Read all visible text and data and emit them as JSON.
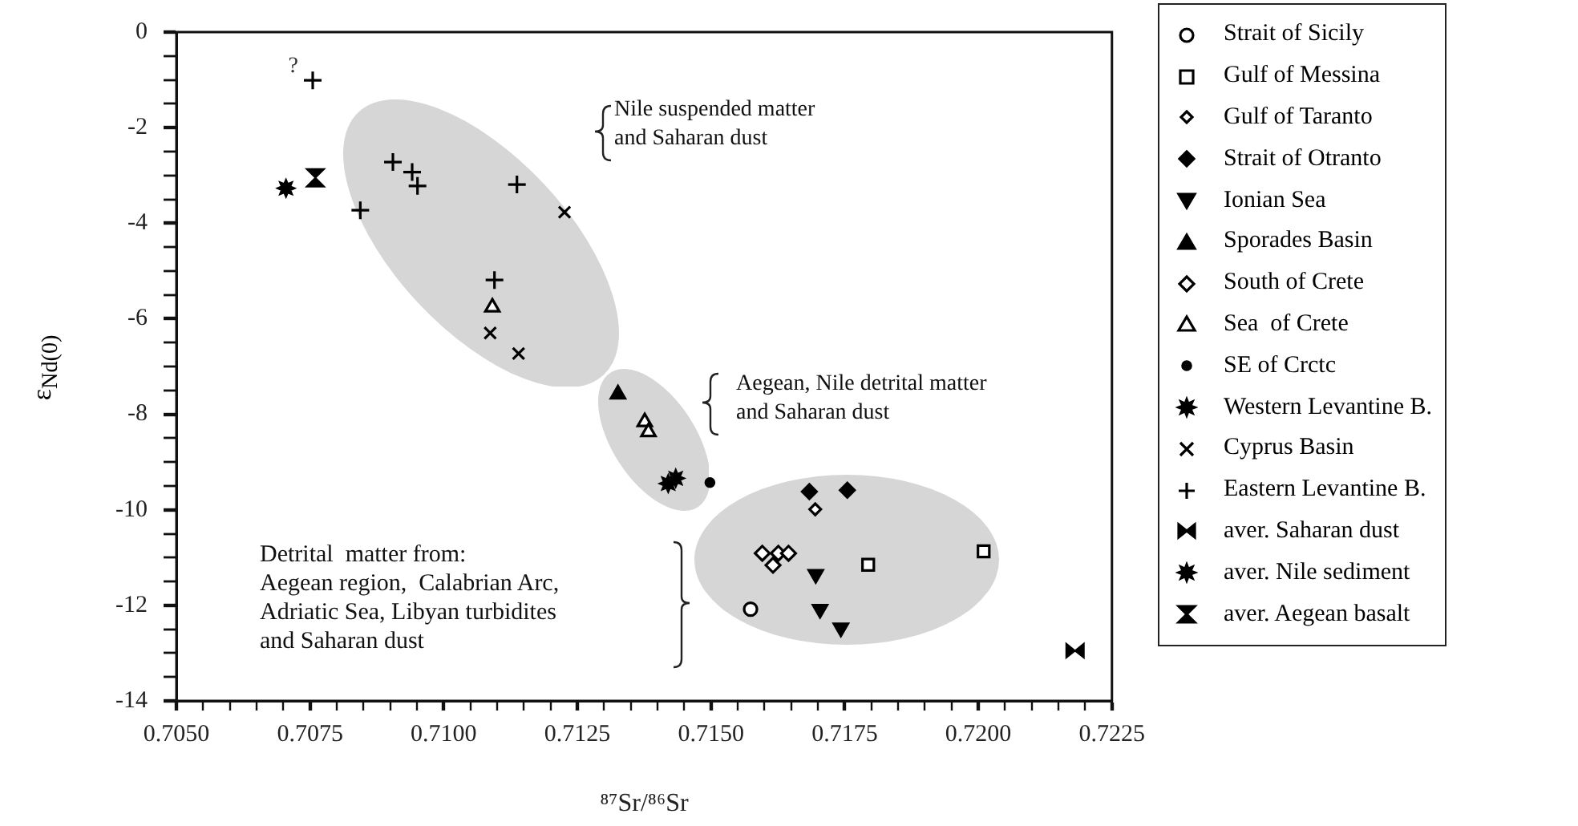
{
  "chart_data": {
    "type": "scatter",
    "xlabel": "⁸⁷Sr/⁸⁶Sr",
    "ylabel": "ε$_{Nd(0)}$",
    "xlim": [
      0.705,
      0.7225
    ],
    "ylim": [
      -14,
      0
    ],
    "xticks": [
      {
        "value": 0.705,
        "label": "0.7050"
      },
      {
        "value": 0.7055,
        "label": null
      },
      {
        "value": 0.706,
        "label": null
      },
      {
        "value": 0.7065,
        "label": null
      },
      {
        "value": 0.707,
        "label": null
      },
      {
        "value": 0.7075,
        "label": "0.7075"
      },
      {
        "value": 0.708,
        "label": null
      },
      {
        "value": 0.7085,
        "label": null
      },
      {
        "value": 0.709,
        "label": null
      },
      {
        "value": 0.7095,
        "label": null
      },
      {
        "value": 0.71,
        "label": "0.7100"
      },
      {
        "value": 0.7105,
        "label": null
      },
      {
        "value": 0.711,
        "label": null
      },
      {
        "value": 0.7115,
        "label": null
      },
      {
        "value": 0.712,
        "label": null
      },
      {
        "value": 0.7125,
        "label": "0.7125"
      },
      {
        "value": 0.713,
        "label": null
      },
      {
        "value": 0.7135,
        "label": null
      },
      {
        "value": 0.714,
        "label": null
      },
      {
        "value": 0.7145,
        "label": null
      },
      {
        "value": 0.715,
        "label": "0.7150"
      },
      {
        "value": 0.7155,
        "label": null
      },
      {
        "value": 0.716,
        "label": null
      },
      {
        "value": 0.7165,
        "label": null
      },
      {
        "value": 0.717,
        "label": null
      },
      {
        "value": 0.7175,
        "label": "0.7175"
      },
      {
        "value": 0.718,
        "label": null
      },
      {
        "value": 0.7185,
        "label": null
      },
      {
        "value": 0.719,
        "label": null
      },
      {
        "value": 0.7195,
        "label": null
      },
      {
        "value": 0.72,
        "label": "0.7200"
      },
      {
        "value": 0.7205,
        "label": null
      },
      {
        "value": 0.721,
        "label": null
      },
      {
        "value": 0.7215,
        "label": null
      },
      {
        "value": 0.722,
        "label": null
      },
      {
        "value": 0.7225,
        "label": "0.7225"
      }
    ],
    "yticks": [
      0,
      {
        "value": -0.5,
        "label": null
      },
      {
        "value": -1,
        "label": null
      },
      {
        "value": -1.5,
        "label": null
      },
      -2,
      {
        "value": -2.5,
        "label": null
      },
      {
        "value": -3,
        "label": null
      },
      {
        "value": -3.5,
        "label": null
      },
      -4,
      {
        "value": -4.5,
        "label": null
      },
      {
        "value": -5,
        "label": null
      },
      {
        "value": -5.5,
        "label": null
      },
      -6,
      {
        "value": -6.5,
        "label": null
      },
      {
        "value": -7,
        "label": null
      },
      {
        "value": -7.5,
        "label": null
      },
      -8,
      {
        "value": -8.5,
        "label": null
      },
      {
        "value": -9,
        "label": null
      },
      {
        "value": -9.5,
        "label": null
      },
      -10,
      {
        "value": -10.5,
        "label": null
      },
      {
        "value": -11,
        "label": null
      },
      {
        "value": -11.5,
        "label": null
      },
      -12,
      {
        "value": -12.5,
        "label": null
      },
      {
        "value": -13,
        "label": null
      },
      {
        "value": -13.5,
        "label": null
      },
      -14
    ],
    "grid": false,
    "legend": "right",
    "series": [
      {
        "name": "Strait of Sicily",
        "color": "#000000",
        "marker": "circle-open",
        "x": [
          0.71574
        ],
        "values": [
          -12.08
        ]
      },
      {
        "name": "Gulf of Messina",
        "color": "#000000",
        "marker": "square-open",
        "x": [
          0.71794,
          0.7201
        ],
        "values": [
          -11.15,
          -10.87
        ]
      },
      {
        "name": "Gulf of Taranto",
        "color": "#000000",
        "marker": "diamond-open-small",
        "x": [
          0.71695
        ],
        "values": [
          -9.99
        ]
      },
      {
        "name": "Strait of Otranto",
        "color": "#000000",
        "marker": "diamond",
        "x": [
          0.71684,
          0.71755
        ],
        "values": [
          -9.62,
          -9.59
        ]
      },
      {
        "name": "Ionian Sea",
        "color": "#000000",
        "marker": "triangle-down",
        "x": [
          0.71696,
          0.71704,
          0.71743
        ],
        "values": [
          -11.35,
          -12.08,
          -12.47
        ]
      },
      {
        "name": "Sporades Basin",
        "color": "#000000",
        "marker": "triangle",
        "x": [
          0.71326
        ],
        "values": [
          -7.58
        ]
      },
      {
        "name": "South of Crete",
        "color": "#000000",
        "marker": "diamond-open",
        "x": [
          0.71596,
          0.71626,
          0.71645,
          0.71616
        ],
        "values": [
          -10.91,
          -10.91,
          -10.91,
          -11.16
        ]
      },
      {
        "name": "Sea  of Crete",
        "color": "#000000",
        "marker": "triangle-open",
        "x": [
          0.71091,
          0.71376,
          0.71383
        ],
        "values": [
          -5.76,
          -8.16,
          -8.37
        ]
      },
      {
        "name": "SE of Crctc",
        "color": "#000000",
        "marker": "circle-small",
        "x": [
          0.71498
        ],
        "values": [
          -9.43
        ]
      },
      {
        "name": "Western Levantine B.",
        "color": "#000000",
        "marker": "star",
        "x": [
          0.7142,
          0.71434
        ],
        "values": [
          -9.45,
          -9.34
        ]
      },
      {
        "name": "Cyprus Basin",
        "color": "#000000",
        "marker": "x",
        "x": [
          0.71226,
          0.71087,
          0.7114
        ],
        "values": [
          -3.77,
          -6.3,
          -6.73
        ]
      },
      {
        "name": "Eastern Levantine B.",
        "color": "#000000",
        "marker": "cross",
        "x": [
          0.70755,
          0.70905,
          0.70941,
          0.70951,
          0.70844,
          0.71137,
          0.71095
        ],
        "values": [
          -1.01,
          -2.72,
          -2.93,
          -3.22,
          -3.73,
          -3.19,
          -5.19
        ]
      },
      {
        "name": "aver. Saharan dust",
        "color": "#000000",
        "x": [
          0.72181
        ],
        "values": [
          -12.95
        ]
      },
      {
        "name": "aver. Nile sediment",
        "color": "#000000",
        "marker": "star",
        "x": [
          0.70705
        ],
        "values": [
          -3.27
        ]
      },
      {
        "name": "aver. Aegean basalt",
        "color": "#000000",
        "x": [
          0.7076
        ],
        "values": [
          -3.05
        ]
      }
    ],
    "annotations": [
      {
        "text": "?",
        "x": 0.70755,
        "y": -1.01
      },
      "Nile suspended matter\nand Saharan dust",
      "Aegean, Nile detrital matter\nand Saharan dust",
      "Detrital  matter from:\nAegean region,  Calabrian Arc,\nAdriatic Sea, Libyan turbidites\nand Saharan dust"
    ]
  }
}
